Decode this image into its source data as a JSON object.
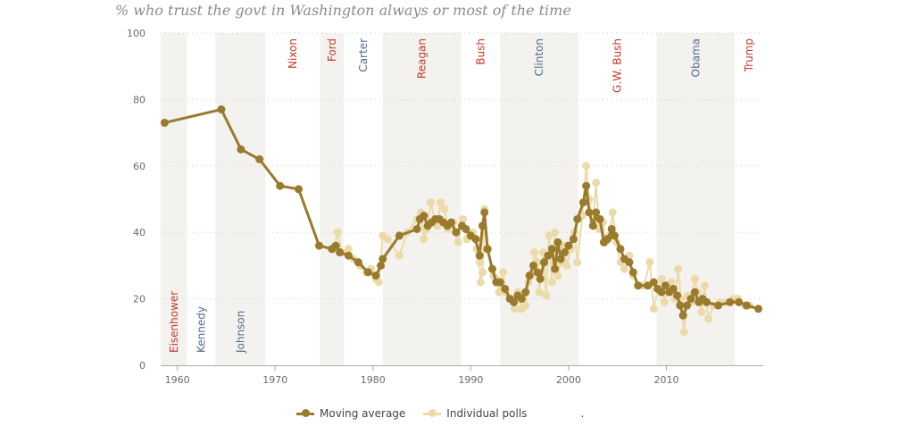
{
  "title": "% who trust the govt in Washington always or most of the time",
  "legend": {
    "moving_average": "Moving average",
    "individual_polls": "Individual polls",
    "trailing": "."
  },
  "colors": {
    "moving_average": "#9a7a2c",
    "individual_polls": "#ecdaa9",
    "band": "#f3f2ee",
    "republican": "#c0392b",
    "democrat": "#4f6d8c",
    "grid": "#cccccc",
    "axis": "#aaaaaa"
  },
  "chart_data": {
    "type": "line",
    "title": "% who trust the govt in Washington always or most of the time",
    "xlabel": "",
    "ylabel": "",
    "xlim": [
      1958.3,
      2019.9
    ],
    "ylim": [
      0,
      100
    ],
    "x_ticks": [
      1960,
      1970,
      1980,
      1990,
      2000,
      2010
    ],
    "y_ticks": [
      0,
      20,
      40,
      60,
      80,
      100
    ],
    "grid": "horizontal-dotted",
    "legend_position": "bottom-center",
    "presidents": [
      {
        "name": "Eisenhower",
        "start": 1958.3,
        "end": 1961.0,
        "party": "R",
        "shaded": true,
        "label_position": "bottom"
      },
      {
        "name": "Kennedy",
        "start": 1961.0,
        "end": 1963.9,
        "party": "D",
        "shaded": false,
        "label_position": "bottom"
      },
      {
        "name": "Johnson",
        "start": 1963.9,
        "end": 1969.0,
        "party": "D",
        "shaded": true,
        "label_position": "bottom"
      },
      {
        "name": "Nixon",
        "start": 1969.0,
        "end": 1974.6,
        "party": "R",
        "shaded": false,
        "label_position": "top"
      },
      {
        "name": "Ford",
        "start": 1974.6,
        "end": 1977.0,
        "party": "R",
        "shaded": true,
        "label_position": "top"
      },
      {
        "name": "Carter",
        "start": 1977.0,
        "end": 1981.0,
        "party": "D",
        "shaded": false,
        "label_position": "top"
      },
      {
        "name": "Reagan",
        "start": 1981.0,
        "end": 1989.0,
        "party": "R",
        "shaded": true,
        "label_position": "top"
      },
      {
        "name": "Bush",
        "start": 1989.0,
        "end": 1993.0,
        "party": "R",
        "shaded": false,
        "label_position": "top"
      },
      {
        "name": "Clinton",
        "start": 1993.0,
        "end": 2001.0,
        "party": "D",
        "shaded": true,
        "label_position": "top"
      },
      {
        "name": "G.W. Bush",
        "start": 2001.0,
        "end": 2009.0,
        "party": "R",
        "shaded": false,
        "label_position": "top"
      },
      {
        "name": "Obama",
        "start": 2009.0,
        "end": 2017.0,
        "party": "D",
        "shaded": true,
        "label_position": "top"
      },
      {
        "name": "Trump",
        "start": 2017.0,
        "end": 2019.9,
        "party": "R",
        "shaded": false,
        "label_position": "top"
      }
    ],
    "series": [
      {
        "name": "Individual polls",
        "points": [
          [
            1976.0,
            35
          ],
          [
            1976.4,
            40
          ],
          [
            1976.8,
            34
          ],
          [
            1977.5,
            35
          ],
          [
            1978.0,
            32
          ],
          [
            1978.7,
            30
          ],
          [
            1979.3,
            28
          ],
          [
            1979.8,
            29
          ],
          [
            1980.3,
            26
          ],
          [
            1980.6,
            25
          ],
          [
            1981.0,
            39
          ],
          [
            1981.5,
            38
          ],
          [
            1982.7,
            33
          ],
          [
            1983.5,
            40
          ],
          [
            1984.5,
            44
          ],
          [
            1984.9,
            46
          ],
          [
            1985.2,
            38
          ],
          [
            1985.5,
            41
          ],
          [
            1985.9,
            49
          ],
          [
            1986.3,
            44
          ],
          [
            1986.6,
            42
          ],
          [
            1986.9,
            49
          ],
          [
            1987.3,
            47
          ],
          [
            1987.7,
            41
          ],
          [
            1988.2,
            43
          ],
          [
            1988.7,
            37
          ],
          [
            1989.2,
            44
          ],
          [
            1989.6,
            38
          ],
          [
            1990.2,
            40
          ],
          [
            1990.6,
            35
          ],
          [
            1990.9,
            31
          ],
          [
            1991.0,
            25
          ],
          [
            1991.2,
            28
          ],
          [
            1991.4,
            47
          ],
          [
            1991.8,
            35
          ],
          [
            1992.3,
            27
          ],
          [
            1992.6,
            26
          ],
          [
            1992.9,
            22
          ],
          [
            1993.3,
            28
          ],
          [
            1993.6,
            22
          ],
          [
            1994.1,
            20
          ],
          [
            1994.5,
            17
          ],
          [
            1994.8,
            22
          ],
          [
            1995.2,
            17
          ],
          [
            1995.6,
            18
          ],
          [
            1995.9,
            25
          ],
          [
            1996.2,
            27
          ],
          [
            1996.5,
            34
          ],
          [
            1996.8,
            31
          ],
          [
            1997.0,
            22
          ],
          [
            1997.4,
            34
          ],
          [
            1997.7,
            21
          ],
          [
            1998.0,
            39
          ],
          [
            1998.3,
            25
          ],
          [
            1998.6,
            40
          ],
          [
            1998.9,
            27
          ],
          [
            1999.2,
            31
          ],
          [
            1999.5,
            36
          ],
          [
            1999.8,
            30
          ],
          [
            2000.2,
            35
          ],
          [
            2000.6,
            40
          ],
          [
            2000.9,
            31
          ],
          [
            2001.4,
            45
          ],
          [
            2001.8,
            60
          ],
          [
            2002.1,
            50
          ],
          [
            2002.5,
            43
          ],
          [
            2002.8,
            55
          ],
          [
            2003.1,
            41
          ],
          [
            2003.5,
            43
          ],
          [
            2003.8,
            37
          ],
          [
            2004.2,
            39
          ],
          [
            2004.5,
            46
          ],
          [
            2004.9,
            37
          ],
          [
            2005.3,
            31
          ],
          [
            2005.7,
            29
          ],
          [
            2006.2,
            33
          ],
          [
            2006.6,
            27
          ],
          [
            2007.2,
            24
          ],
          [
            2007.7,
            24
          ],
          [
            2008.3,
            31
          ],
          [
            2008.7,
            17
          ],
          [
            2009.1,
            23
          ],
          [
            2009.5,
            26
          ],
          [
            2009.8,
            19
          ],
          [
            2010.2,
            24
          ],
          [
            2010.5,
            25
          ],
          [
            2010.9,
            20
          ],
          [
            2011.2,
            29
          ],
          [
            2011.5,
            20
          ],
          [
            2011.8,
            10
          ],
          [
            2012.2,
            21
          ],
          [
            2012.5,
            19
          ],
          [
            2012.9,
            26
          ],
          [
            2013.2,
            22
          ],
          [
            2013.6,
            16
          ],
          [
            2013.9,
            24
          ],
          [
            2014.3,
            14
          ],
          [
            2014.8,
            18
          ],
          [
            2015.5,
            19
          ],
          [
            2016.2,
            19
          ],
          [
            2016.8,
            20
          ],
          [
            2017.3,
            20
          ],
          [
            2018.0,
            18
          ],
          [
            2018.5,
            18
          ]
        ]
      },
      {
        "name": "Moving average",
        "points": [
          [
            1958.7,
            73
          ],
          [
            1964.5,
            77
          ],
          [
            1966.5,
            65
          ],
          [
            1968.4,
            62
          ],
          [
            1970.5,
            54
          ],
          [
            1972.4,
            53
          ],
          [
            1974.5,
            36
          ],
          [
            1975.8,
            35
          ],
          [
            1976.2,
            36
          ],
          [
            1976.6,
            34
          ],
          [
            1977.5,
            33
          ],
          [
            1978.5,
            31
          ],
          [
            1979.5,
            28
          ],
          [
            1980.3,
            27
          ],
          [
            1980.8,
            30
          ],
          [
            1981.0,
            32
          ],
          [
            1982.7,
            39
          ],
          [
            1984.5,
            41
          ],
          [
            1984.8,
            44
          ],
          [
            1985.2,
            45
          ],
          [
            1985.6,
            42
          ],
          [
            1986.0,
            43
          ],
          [
            1986.4,
            44
          ],
          [
            1986.8,
            44
          ],
          [
            1987.2,
            43
          ],
          [
            1987.6,
            42
          ],
          [
            1988.0,
            43
          ],
          [
            1988.5,
            40
          ],
          [
            1989.1,
            42
          ],
          [
            1989.5,
            41
          ],
          [
            1990.0,
            39
          ],
          [
            1990.5,
            38
          ],
          [
            1990.9,
            33
          ],
          [
            1991.2,
            42
          ],
          [
            1991.4,
            46
          ],
          [
            1991.7,
            35
          ],
          [
            1992.2,
            29
          ],
          [
            1992.6,
            25
          ],
          [
            1993.0,
            25
          ],
          [
            1993.5,
            23
          ],
          [
            1994.0,
            20
          ],
          [
            1994.4,
            19
          ],
          [
            1994.8,
            21
          ],
          [
            1995.2,
            20
          ],
          [
            1995.6,
            22
          ],
          [
            1996.0,
            27
          ],
          [
            1996.4,
            30
          ],
          [
            1996.8,
            28
          ],
          [
            1997.1,
            26
          ],
          [
            1997.5,
            31
          ],
          [
            1997.9,
            33
          ],
          [
            1998.3,
            35
          ],
          [
            1998.6,
            29
          ],
          [
            1998.9,
            37
          ],
          [
            1999.2,
            32
          ],
          [
            1999.6,
            34
          ],
          [
            2000.0,
            36
          ],
          [
            2000.5,
            38
          ],
          [
            2000.9,
            44
          ],
          [
            2001.5,
            49
          ],
          [
            2001.8,
            54
          ],
          [
            2002.1,
            46
          ],
          [
            2002.5,
            42
          ],
          [
            2002.8,
            46
          ],
          [
            2003.2,
            44
          ],
          [
            2003.6,
            37
          ],
          [
            2004.0,
            38
          ],
          [
            2004.4,
            41
          ],
          [
            2004.7,
            39
          ],
          [
            2005.3,
            35
          ],
          [
            2005.7,
            32
          ],
          [
            2006.2,
            31
          ],
          [
            2006.6,
            28
          ],
          [
            2007.1,
            24
          ],
          [
            2008.1,
            24
          ],
          [
            2008.7,
            25
          ],
          [
            2009.1,
            23
          ],
          [
            2009.5,
            22
          ],
          [
            2009.9,
            24
          ],
          [
            2010.3,
            22
          ],
          [
            2010.7,
            23
          ],
          [
            2011.1,
            21
          ],
          [
            2011.4,
            18
          ],
          [
            2011.7,
            15
          ],
          [
            2012.1,
            18
          ],
          [
            2012.5,
            20
          ],
          [
            2012.9,
            22
          ],
          [
            2013.3,
            19
          ],
          [
            2013.7,
            20
          ],
          [
            2014.1,
            19
          ],
          [
            2015.3,
            18
          ],
          [
            2016.5,
            19
          ],
          [
            2017.4,
            19
          ],
          [
            2018.2,
            18
          ],
          [
            2019.4,
            17
          ]
        ]
      }
    ]
  }
}
